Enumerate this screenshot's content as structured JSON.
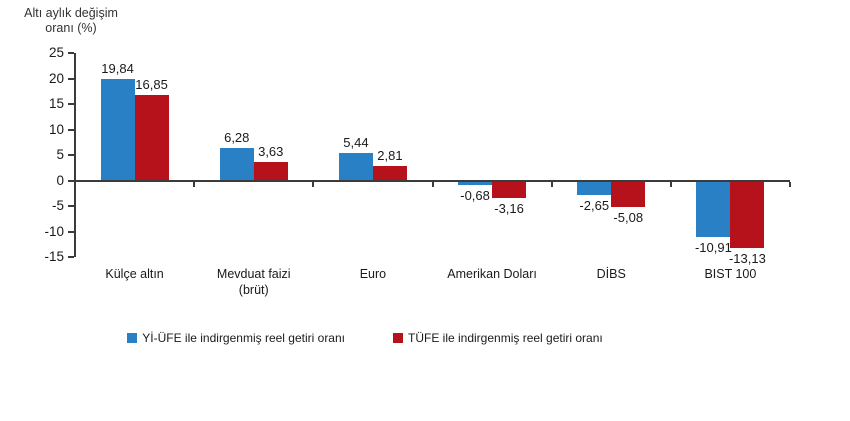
{
  "chart_data": {
    "type": "bar",
    "title": "Altı aylık değişim\noranı (%)",
    "xlabel": "",
    "ylabel": "Altı aylık değişim oranı (%)",
    "categories": [
      "Külçe altın",
      "Mevduat faizi\n(brüt)",
      "Euro",
      "Amerikan Doları",
      "DİBS",
      "BIST 100"
    ],
    "series": [
      {
        "name": "Yİ-ÜFE ile indirgenmiş reel getiri oranı",
        "color": "#2980C4",
        "values": [
          19.84,
          6.28,
          5.44,
          -0.68,
          -2.65,
          -10.91
        ],
        "value_labels": [
          "19,84",
          "6,28",
          "5,44",
          "-0,68",
          "-2,65",
          "-10,91"
        ]
      },
      {
        "name": "TÜFE ile indirgenmiş reel getiri oranı",
        "color": "#B5121B",
        "values": [
          16.85,
          3.63,
          2.81,
          -3.16,
          -5.08,
          -13.13
        ],
        "value_labels": [
          "16,85",
          "3,63",
          "2,81",
          "-3,16",
          "-5,08",
          "-13,13"
        ]
      }
    ],
    "ylim": [
      -15,
      25
    ],
    "ytick_step": 5,
    "yticks": [
      25,
      20,
      15,
      10,
      5,
      0,
      -5,
      -10,
      -15
    ],
    "ytick_labels": [
      "25",
      "20",
      "15",
      "10",
      "5",
      "0",
      "-5",
      "-10",
      "-15"
    ],
    "grid": false,
    "legend_position": "bottom",
    "axis_color": "#3b3b3b",
    "text_color": "#1a1a1a",
    "background_color": "#ffffff"
  }
}
